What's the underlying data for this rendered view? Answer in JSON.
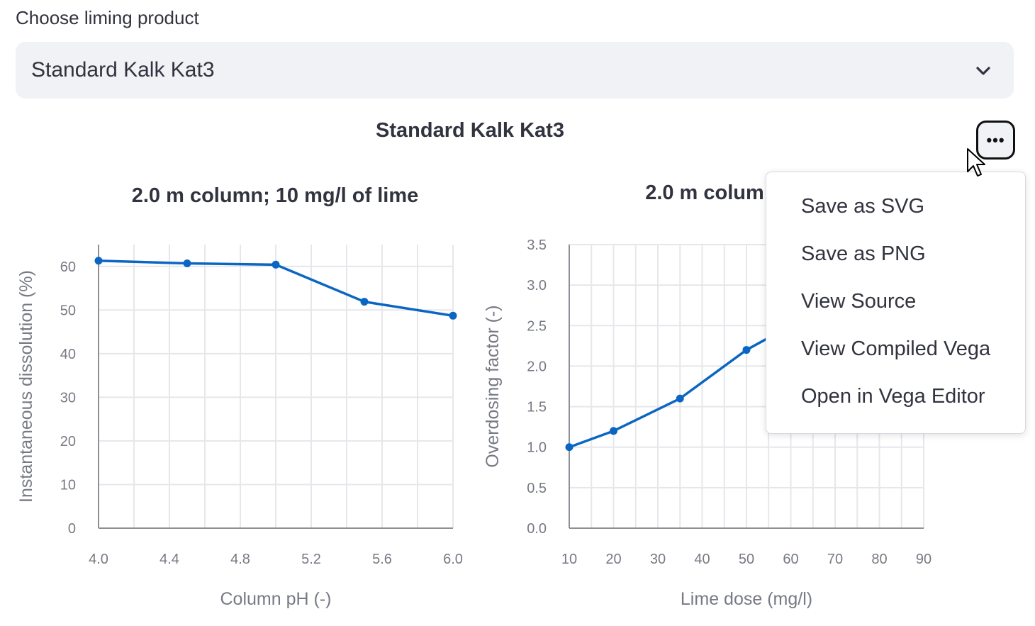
{
  "select": {
    "label": "Choose liming product",
    "value": "Standard Kalk Kat3"
  },
  "page_title": "Standard Kalk Kat3",
  "more_button_icon": "ellipsis-icon",
  "menu": {
    "items": [
      {
        "label": "Save as SVG"
      },
      {
        "label": "Save as PNG"
      },
      {
        "label": "View Source"
      },
      {
        "label": "View Compiled Vega"
      },
      {
        "label": "Open in Vega Editor"
      }
    ]
  },
  "colors": {
    "line": "#0b66c3",
    "grid": "#e6e7ea",
    "axis": "#8c8f96"
  },
  "chart_data": [
    {
      "type": "line",
      "title": "2.0 m column; 10 mg/l of lime",
      "xlabel": "Column pH (-)",
      "ylabel": "Instantaneous dissolution (%)",
      "xlim": [
        4.0,
        6.0
      ],
      "ylim": [
        0,
        65
      ],
      "x_ticks": [
        "4.0",
        "4.4",
        "4.8",
        "5.2",
        "5.6",
        "6.0"
      ],
      "y_ticks": [
        "0",
        "10",
        "20",
        "30",
        "40",
        "50",
        "60"
      ],
      "grid": true,
      "series": [
        {
          "x": [
            4.0,
            4.5,
            5.0,
            5.5,
            6.0
          ],
          "y": [
            61.3,
            60.7,
            60.4,
            51.9,
            48.7
          ]
        }
      ]
    },
    {
      "type": "line",
      "title": "2.0 m colum",
      "xlabel": "Lime dose (mg/l)",
      "ylabel": "Overdosing factor (-)",
      "xlim": [
        10,
        90
      ],
      "ylim": [
        0,
        3.5
      ],
      "x_ticks": [
        "10",
        "20",
        "30",
        "40",
        "50",
        "60",
        "70",
        "80",
        "90"
      ],
      "y_ticks": [
        "0.0",
        "0.5",
        "1.0",
        "1.5",
        "2.0",
        "2.5",
        "3.0",
        "3.5"
      ],
      "grid": true,
      "series": [
        {
          "x": [
            10,
            20,
            35,
            50,
            60
          ],
          "y": [
            1.0,
            1.2,
            1.6,
            2.2,
            2.5
          ]
        }
      ]
    }
  ]
}
